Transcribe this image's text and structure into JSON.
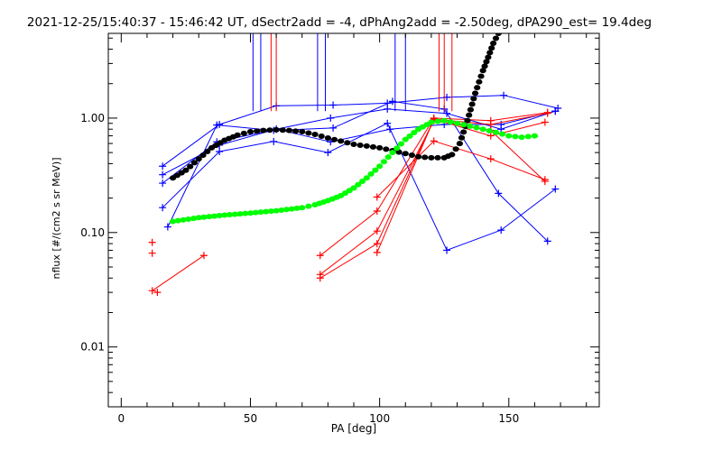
{
  "chart_data": {
    "type": "scatter",
    "title": "2021-12-25/15:40:37 - 15:46:42 UT, dSectr2add = -4, dPhAng2add = -2.50deg, dPA290_est=  19.4deg",
    "xlabel": "PA [deg]",
    "ylabel": "nflux [#/(cm2 s sr MeV)]",
    "xlim": [
      -5,
      185
    ],
    "ylim": [
      0.003,
      5.5
    ],
    "yscale": "log",
    "xticks": [
      0,
      50,
      100,
      150
    ],
    "xtick_labels": [
      "0",
      "50",
      "100",
      "150"
    ],
    "yticks": [
      0.01,
      0.1,
      1.0
    ],
    "ytick_labels": [
      "0.01",
      "0.10",
      "1.00"
    ],
    "grid": false,
    "series": [
      {
        "color": "#0000ff",
        "style": "line-plus",
        "lines": [
          [
            [
              16,
              0.38
            ],
            [
              38,
              0.88
            ],
            [
              60,
              1.28
            ],
            [
              82,
              1.3
            ],
            [
              103,
              1.35
            ],
            [
              126,
              1.52
            ],
            [
              148,
              1.58
            ],
            [
              169,
              1.22
            ]
          ],
          [
            [
              16,
              0.27
            ],
            [
              37,
              0.62
            ],
            [
              60,
              0.8
            ],
            [
              81,
              0.62
            ],
            [
              104,
              0.8
            ],
            [
              125,
              0.88
            ],
            [
              147,
              0.88
            ],
            [
              168,
              1.15
            ]
          ],
          [
            [
              16,
              0.165
            ],
            [
              38,
              0.51
            ],
            [
              59,
              0.625
            ],
            [
              80,
              0.5
            ],
            [
              103,
              0.9
            ],
            [
              126,
              0.07
            ],
            [
              147,
              0.105
            ],
            [
              168,
              0.24
            ]
          ],
          [
            [
              18,
              0.112
            ],
            [
              37,
              0.87
            ],
            [
              59,
              0.78
            ],
            [
              82,
              0.82
            ],
            [
              105,
              1.4
            ],
            [
              125,
              1.2
            ],
            [
              146,
              0.22
            ],
            [
              165,
              0.084
            ]
          ],
          [
            [
              16,
              0.32
            ],
            [
              38,
              0.58
            ],
            [
              60,
              0.8
            ],
            [
              81,
              1.0
            ],
            [
              103,
              1.2
            ],
            [
              126,
              1.1
            ],
            [
              147,
              0.8
            ],
            [
              168,
              1.15
            ]
          ]
        ],
        "spikes_x": [
          51,
          54,
          76,
          79,
          106,
          110
        ]
      },
      {
        "color": "#ff0000",
        "style": "line-plus",
        "lines": [
          [
            [
              12,
              0.031
            ],
            [
              32,
              0.063
            ]
          ],
          [
            [
              77,
              0.043
            ],
            [
              99,
              0.103
            ],
            [
              121,
              0.95
            ],
            [
              143,
              0.78
            ],
            [
              164,
              0.28
            ]
          ],
          [
            [
              77,
              0.04
            ],
            [
              99,
              0.08
            ],
            [
              121,
              0.98
            ],
            [
              143,
              0.88
            ],
            [
              165,
              1.1
            ]
          ],
          [
            [
              77,
              0.063
            ],
            [
              99,
              0.154
            ],
            [
              121,
              1.0
            ],
            [
              143,
              0.95
            ],
            [
              165,
              1.12
            ]
          ],
          [
            [
              99,
              0.204
            ],
            [
              121,
              0.63
            ],
            [
              143,
              0.44
            ],
            [
              164,
              0.29
            ]
          ],
          [
            [
              99,
              0.067
            ],
            [
              121,
              0.98
            ],
            [
              143,
              0.7
            ],
            [
              164,
              0.92
            ]
          ]
        ],
        "points": [
          [
            12,
            0.082
          ],
          [
            12,
            0.066
          ],
          [
            14,
            0.03
          ]
        ],
        "spikes_x": [
          58,
          60,
          123,
          125,
          128
        ]
      },
      {
        "color": "#000000",
        "style": "dots",
        "x": [
          20,
          25,
          30,
          35,
          40,
          45,
          50,
          55,
          60,
          65,
          70,
          75,
          80,
          85,
          90,
          95,
          100,
          105,
          110,
          115,
          120,
          125,
          128,
          131,
          134,
          137,
          140,
          142,
          144,
          146
        ],
        "y": [
          0.3,
          0.35,
          0.44,
          0.55,
          0.64,
          0.71,
          0.76,
          0.78,
          0.79,
          0.78,
          0.76,
          0.72,
          0.67,
          0.63,
          0.59,
          0.57,
          0.55,
          0.52,
          0.49,
          0.46,
          0.45,
          0.45,
          0.48,
          0.6,
          0.95,
          1.65,
          2.6,
          3.4,
          4.5,
          5.5
        ]
      },
      {
        "color": "#00ff00",
        "style": "dots",
        "x": [
          20,
          30,
          40,
          50,
          60,
          70,
          75,
          80,
          85,
          90,
          95,
          100,
          105,
          110,
          115,
          120,
          125,
          130,
          135,
          140,
          145,
          150,
          155,
          160
        ],
        "y": [
          0.125,
          0.135,
          0.142,
          0.148,
          0.155,
          0.165,
          0.175,
          0.19,
          0.21,
          0.245,
          0.3,
          0.38,
          0.5,
          0.65,
          0.8,
          0.92,
          0.95,
          0.9,
          0.85,
          0.8,
          0.75,
          0.7,
          0.68,
          0.7
        ]
      }
    ]
  }
}
